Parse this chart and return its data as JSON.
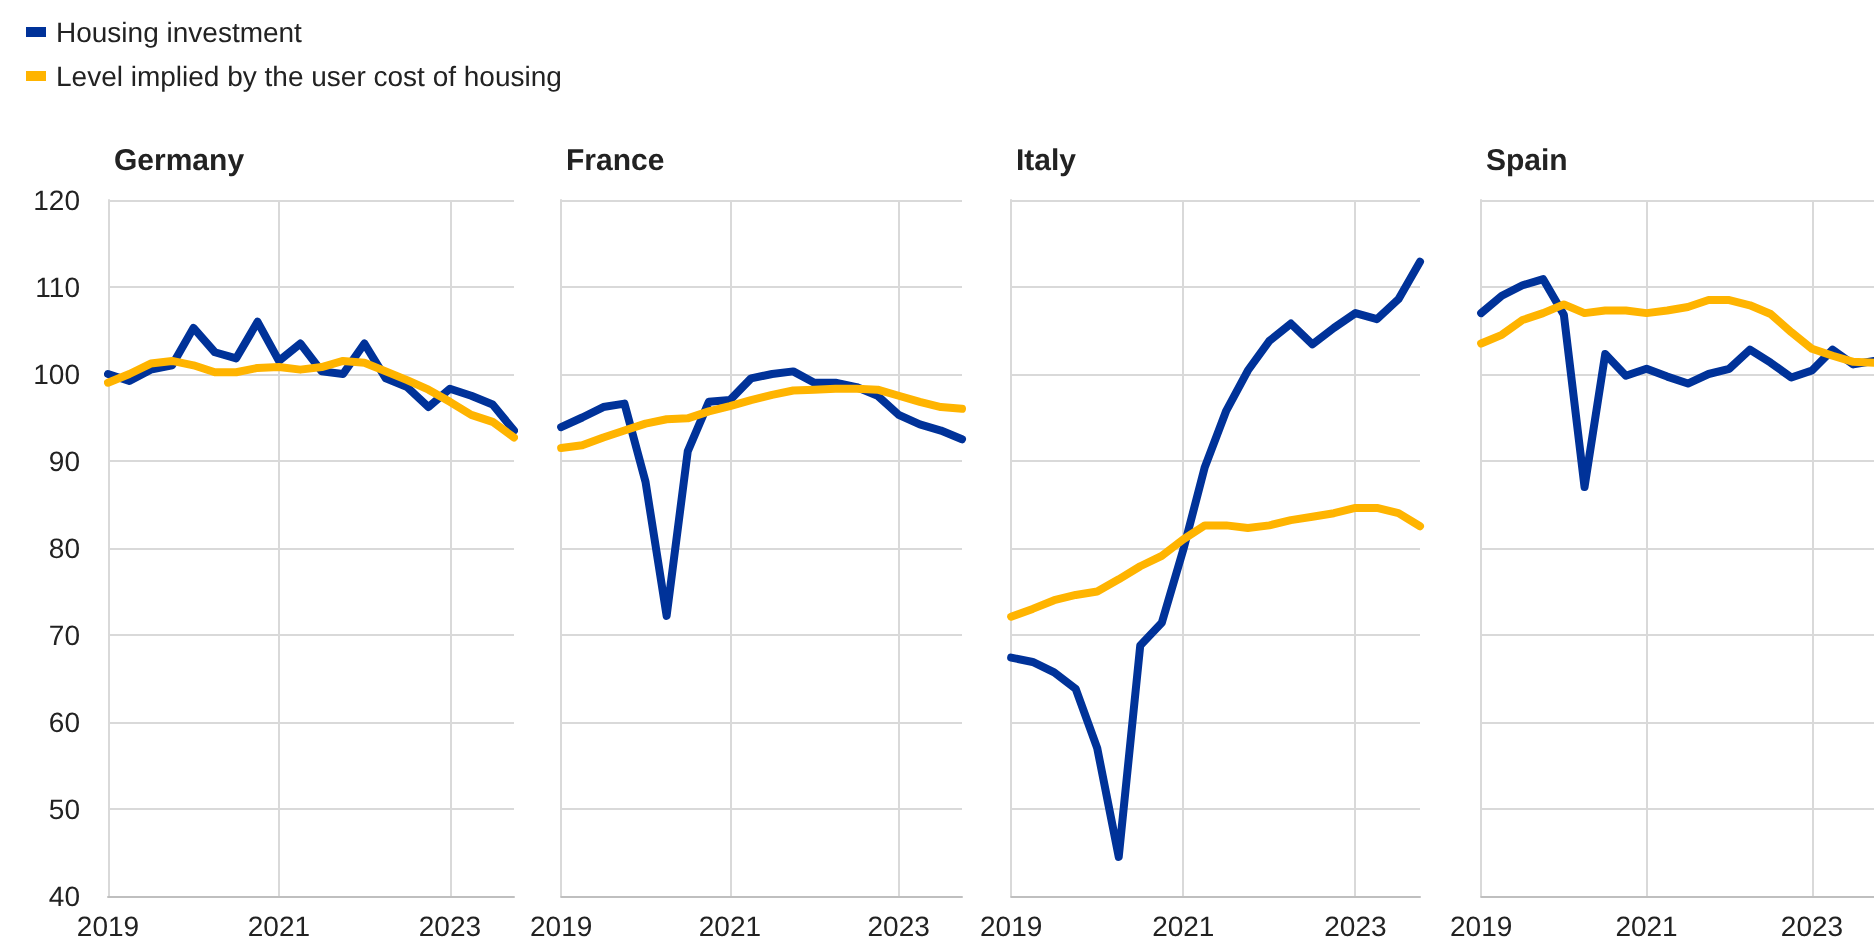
{
  "chart_data": [
    {
      "type": "line",
      "title": "Germany",
      "x": [
        2019,
        2019.25,
        2019.5,
        2019.75,
        2020,
        2020.25,
        2020.5,
        2020.75,
        2021,
        2021.25,
        2021.5,
        2021.75,
        2022,
        2022.25,
        2022.5,
        2022.75,
        2023,
        2023.25,
        2023.5,
        2023.75
      ],
      "xlim": [
        2019,
        2023.75
      ],
      "xticks": [
        2019,
        2021,
        2023
      ],
      "ylim": [
        40,
        120
      ],
      "yticks": [
        40,
        50,
        60,
        70,
        80,
        90,
        100,
        110,
        120
      ],
      "grid": true,
      "legend": "top left",
      "marker": "none",
      "line_style": "solid",
      "series": [
        {
          "name": "Housing investment",
          "color": "#003299",
          "values": [
            100,
            99.2,
            100.5,
            101,
            105.3,
            102.5,
            101.8,
            106,
            101.5,
            103.5,
            100.3,
            100,
            103.5,
            99.5,
            98.5,
            96.2,
            98.3,
            97.5,
            96.5,
            93.5
          ]
        },
        {
          "name": "Level implied by the user cost of housing",
          "color": "#ffb400",
          "values": [
            99,
            100,
            101.2,
            101.5,
            101,
            100.2,
            100.2,
            100.7,
            100.8,
            100.5,
            100.8,
            101.5,
            101.3,
            100.3,
            99.3,
            98.2,
            96.8,
            95.3,
            94.5,
            92.7
          ]
        }
      ]
    },
    {
      "type": "line",
      "title": "France",
      "x": [
        2019,
        2019.25,
        2019.5,
        2019.75,
        2020,
        2020.25,
        2020.5,
        2020.75,
        2021,
        2021.25,
        2021.5,
        2021.75,
        2022,
        2022.25,
        2022.5,
        2022.75,
        2023,
        2023.25,
        2023.5,
        2023.75
      ],
      "xlim": [
        2019,
        2023.75
      ],
      "xticks": [
        2019,
        2021,
        2023
      ],
      "ylim": [
        40,
        120
      ],
      "yticks": [
        40,
        50,
        60,
        70,
        80,
        90,
        100,
        110,
        120
      ],
      "grid": true,
      "tick_labels": "x",
      "marker": "none",
      "line_style": "solid",
      "series": [
        {
          "color": "#003299",
          "values": [
            93.9,
            95,
            96.2,
            96.6,
            87.6,
            72.2,
            91.1,
            96.8,
            97,
            99.5,
            100,
            100.3,
            99,
            99,
            98.5,
            97.5,
            95.3,
            94.2,
            93.5,
            92.5
          ]
        },
        {
          "color": "#ffb400",
          "values": [
            91.5,
            91.8,
            92.7,
            93.5,
            94.3,
            94.8,
            94.9,
            95.7,
            96.3,
            97,
            97.6,
            98.1,
            98.2,
            98.3,
            98.3,
            98.2,
            97.5,
            96.8,
            96.2,
            96
          ]
        }
      ]
    },
    {
      "type": "line",
      "title": "Italy",
      "x": [
        2019,
        2019.25,
        2019.5,
        2019.75,
        2020,
        2020.25,
        2020.5,
        2020.75,
        2021,
        2021.25,
        2021.5,
        2021.75,
        2022,
        2022.25,
        2022.5,
        2022.75,
        2023,
        2023.25,
        2023.5,
        2023.75
      ],
      "xlim": [
        2019,
        2023.75
      ],
      "xticks": [
        2019,
        2021,
        2023
      ],
      "ylim": [
        40,
        120
      ],
      "yticks": [
        40,
        50,
        60,
        70,
        80,
        90,
        100,
        110,
        120
      ],
      "grid": true,
      "tick_labels": "x",
      "marker": "none",
      "line_style": "solid",
      "series": [
        {
          "color": "#003299",
          "values": [
            67.4,
            66.9,
            65.7,
            63.8,
            57,
            44.5,
            68.8,
            71.4,
            79.8,
            89.3,
            95.8,
            100.4,
            103.8,
            105.8,
            103.4,
            105.3,
            107,
            106.3,
            108.6,
            112.9
          ]
        },
        {
          "color": "#ffb400",
          "values": [
            72.1,
            73,
            74,
            74.6,
            75,
            76.4,
            77.9,
            79.1,
            81,
            82.6,
            82.6,
            82.3,
            82.6,
            83.2,
            83.6,
            84,
            84.6,
            84.6,
            84,
            82.5
          ]
        }
      ]
    },
    {
      "type": "line",
      "title": "Spain",
      "x": [
        2019,
        2019.25,
        2019.5,
        2019.75,
        2020,
        2020.25,
        2020.5,
        2020.75,
        2021,
        2021.25,
        2021.5,
        2021.75,
        2022,
        2022.25,
        2022.5,
        2022.75,
        2023,
        2023.25,
        2023.5,
        2023.75
      ],
      "xlim": [
        2019,
        2023.75
      ],
      "xticks": [
        2019,
        2021,
        2023
      ],
      "ylim": [
        40,
        120
      ],
      "yticks": [
        40,
        50,
        60,
        70,
        80,
        90,
        100,
        110,
        120
      ],
      "grid": true,
      "tick_labels": "x",
      "marker": "none",
      "line_style": "solid",
      "series": [
        {
          "color": "#003299",
          "values": [
            107,
            109,
            110.2,
            110.9,
            106.8,
            87,
            102.3,
            99.8,
            100.6,
            99.7,
            98.9,
            100,
            100.6,
            102.8,
            101.3,
            99.6,
            100.4,
            102.8,
            101.1,
            101.5
          ]
        },
        {
          "color": "#ffb400",
          "values": [
            103.5,
            104.5,
            106.2,
            107,
            108,
            107,
            107.3,
            107.3,
            107,
            107.3,
            107.7,
            108.5,
            108.5,
            107.9,
            106.9,
            104.8,
            102.9,
            102.1,
            101.4,
            101.3
          ]
        }
      ]
    }
  ]
}
